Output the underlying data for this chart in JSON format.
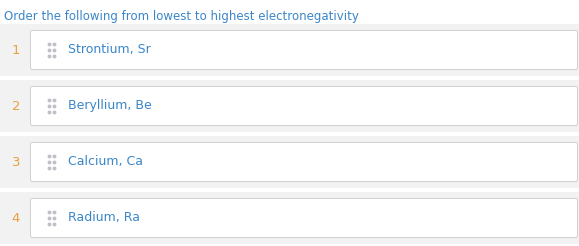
{
  "title": "Order the following from lowest to highest electronegativity",
  "title_color": "#3a86c8",
  "title_fontsize": 8.5,
  "items": [
    {
      "rank": 1,
      "label": "Strontium, Sr"
    },
    {
      "rank": 2,
      "label": "Beryllium, Be"
    },
    {
      "rank": 3,
      "label": "Calcium, Ca"
    },
    {
      "rank": 4,
      "label": "Radium, Ra"
    }
  ],
  "bg_color": "#f2f2f2",
  "box_bg_color": "#ffffff",
  "box_border_color": "#d0d0d0",
  "rank_color": "#e8a040",
  "label_color": "#3a86c8",
  "drag_dot_color": "#c0c0c8",
  "rank_fontsize": 9.5,
  "label_fontsize": 9.0,
  "fig_width": 5.79,
  "fig_height": 2.46,
  "dpi": 100
}
